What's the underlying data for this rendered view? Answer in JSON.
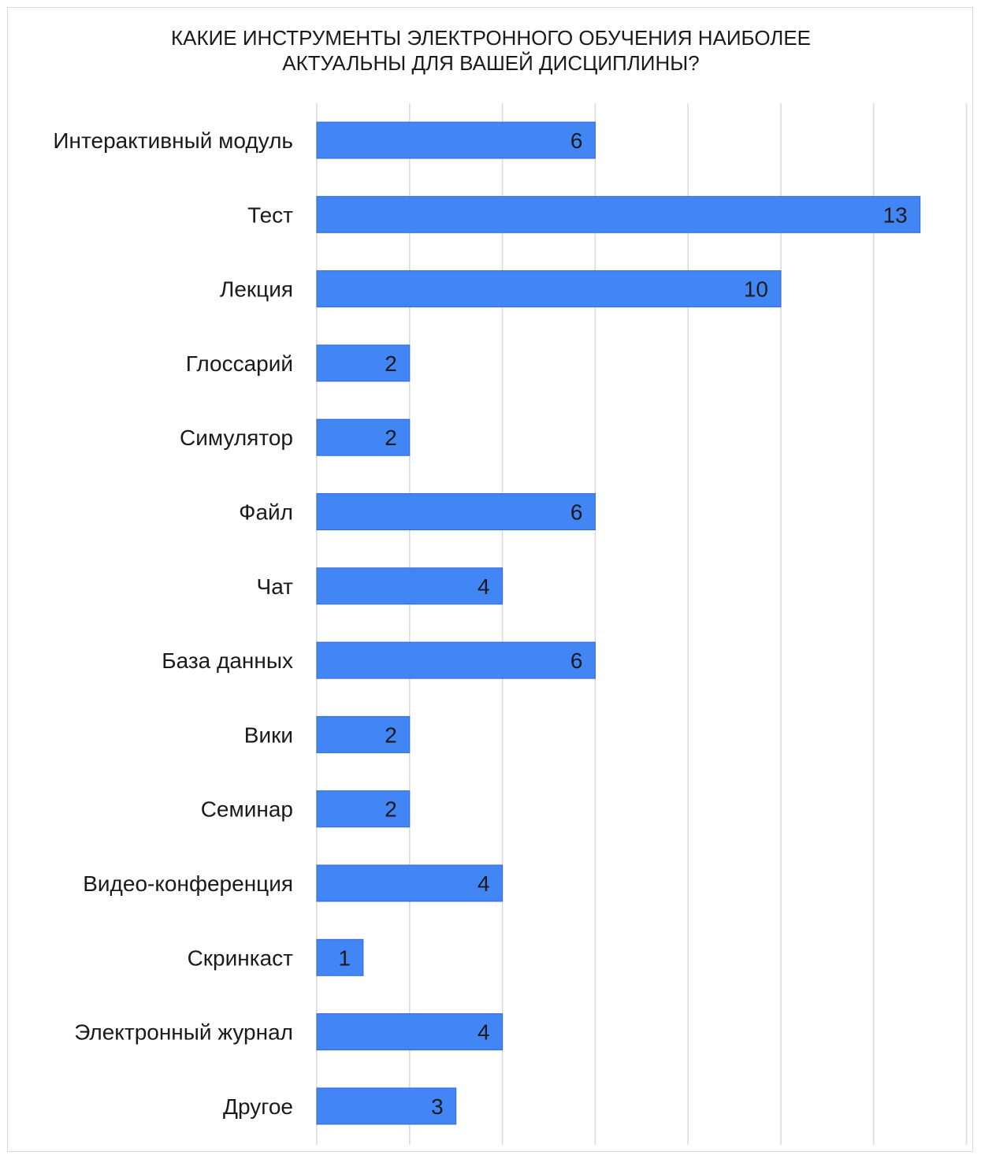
{
  "chart_data": {
    "type": "bar",
    "orientation": "horizontal",
    "title": "КАКИЕ ИНСТРУМЕНТЫ ЭЛЕКТРОННОГО ОБУЧЕНИЯ НАИБОЛЕЕ\nАКТУАЛЬНЫ ДЛЯ ВАШЕЙ ДИСЦИПЛИНЫ?",
    "categories": [
      "Интерактивный модуль",
      "Тест",
      "Лекция",
      "Глоссарий",
      "Симулятор",
      "Файл",
      "Чат",
      "База данных",
      "Вики",
      "Семинар",
      "Видео-конференция",
      "Скринкаст",
      "Электронный журнал",
      "Другое"
    ],
    "values": [
      6,
      13,
      10,
      2,
      2,
      6,
      4,
      6,
      2,
      2,
      4,
      1,
      4,
      3
    ],
    "xlim": [
      0,
      14
    ],
    "grid_step": 2,
    "grid": true,
    "legend": false,
    "bar_color": "#4285f4",
    "bar_border_color": "#3367d6",
    "grid_color": "#d9d9d9",
    "text_color": "#1a1a1a"
  }
}
